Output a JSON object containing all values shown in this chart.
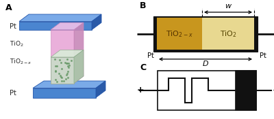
{
  "panel_A_label": "A",
  "panel_B_label": "B",
  "panel_C_label": "C",
  "blue_front": "#4a85d0",
  "blue_top": "#7aaae8",
  "blue_right": "#2a5aa8",
  "blue_edge": "#2255aa",
  "pink_front": "#e8a8d8",
  "pink_top": "#f0c0e8",
  "pink_right": "#c888b8",
  "green_front": "#c8ddc8",
  "green_top": "#d8eed8",
  "green_right": "#a8c8a8",
  "green_dot": "#6a9a6a",
  "gold_dark": "#c8961e",
  "gold_light": "#e8d890",
  "black": "#111111",
  "white": "#ffffff",
  "label_color": "#222222"
}
